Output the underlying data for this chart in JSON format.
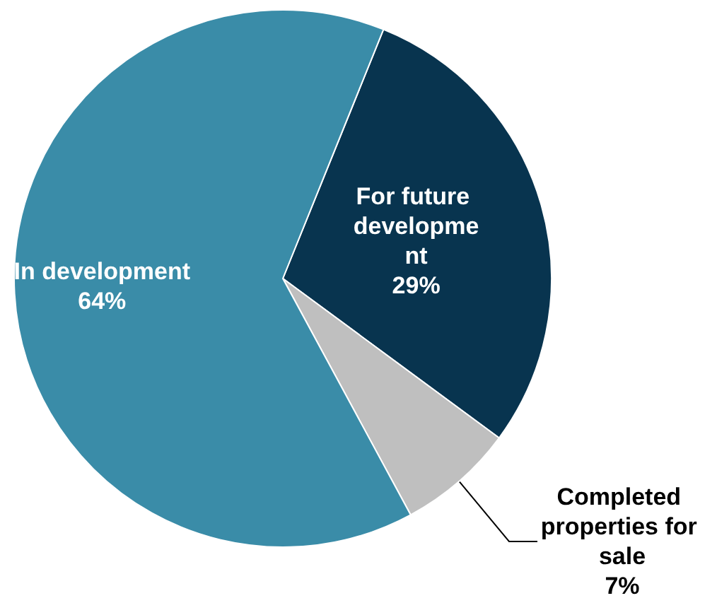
{
  "chart_data": {
    "type": "pie",
    "categories": [
      "For future development",
      "Completed properties for sale",
      "In development"
    ],
    "values": [
      29,
      7,
      64
    ],
    "colors": [
      "#08344f",
      "#bfbfbf",
      "#3a8ca8"
    ],
    "value_labels": [
      "29%",
      "7%",
      "64%"
    ]
  }
}
